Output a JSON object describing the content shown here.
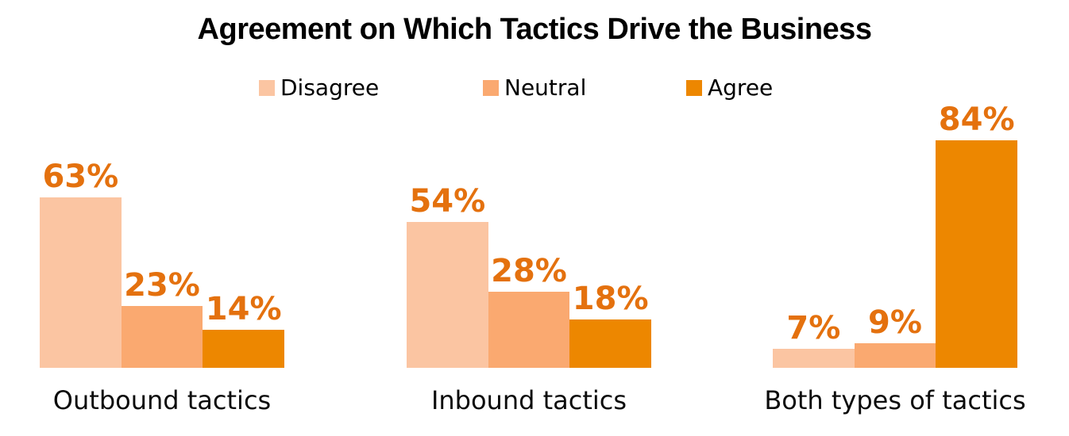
{
  "chart_data": {
    "type": "bar",
    "title": "Agreement on Which Tactics Drive the Business",
    "categories": [
      "Outbound tactics",
      "Inbound tactics",
      "Both types of tactics"
    ],
    "series": [
      {
        "name": "Disagree",
        "color": "#FBC5A2",
        "values": [
          63,
          54,
          7
        ]
      },
      {
        "name": "Neutral",
        "color": "#FAA970",
        "values": [
          23,
          28,
          9
        ]
      },
      {
        "name": "Agree",
        "color": "#ED8700",
        "values": [
          14,
          18,
          84
        ]
      }
    ],
    "value_suffix": "%",
    "ylim": [
      0,
      100
    ],
    "grid": false,
    "axes_shown": false,
    "legend_position": "top",
    "value_label_color": "#E4710E",
    "title_color": "#000000",
    "category_label_color": "#0B0B0B",
    "background_color": "#FFFFFF"
  }
}
